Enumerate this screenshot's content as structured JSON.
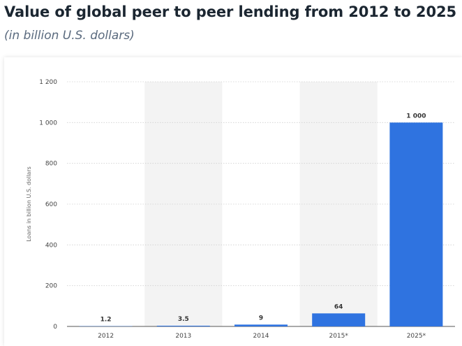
{
  "header": {
    "title": "Value of global peer to peer lending from 2012 to 2025",
    "subtitle": "(in billion U.S. dollars)"
  },
  "colors": {
    "bar": "#2f73e0",
    "band": "#f3f3f3",
    "grid": "#cfcfcf"
  },
  "chart_data": {
    "type": "bar",
    "categories": [
      "2012",
      "2013",
      "2014",
      "2015*",
      "2025*"
    ],
    "values": [
      1.2,
      3.5,
      9,
      64,
      1000
    ],
    "value_labels": [
      "1.2",
      "3.5",
      "9",
      "64",
      "1 000"
    ],
    "ylabel": "Loans in billion U.S. dollars",
    "ylim": [
      0,
      1200
    ],
    "yticks": [
      0,
      200,
      400,
      600,
      800,
      1000,
      1200
    ],
    "ytick_labels": [
      "0",
      "200",
      "400",
      "600",
      "800",
      "1 000",
      "1 200"
    ],
    "grid": true,
    "alternating_bands": true,
    "legend": "none"
  }
}
